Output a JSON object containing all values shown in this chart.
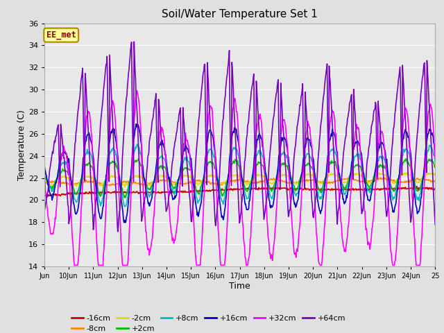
{
  "title": "Soil/Water Temperature Set 1",
  "xlabel": "Time",
  "ylabel": "Temperature (C)",
  "ylim": [
    14,
    36
  ],
  "yticks": [
    14,
    16,
    18,
    20,
    22,
    24,
    26,
    28,
    30,
    32,
    34,
    36
  ],
  "xtick_labels": [
    "Jun",
    "10Jun",
    "11Jun",
    "12Jun",
    "13Jun",
    "14Jun",
    "15Jun",
    "16Jun",
    "17Jun",
    "18Jun",
    "19Jun",
    "20Jun",
    "21Jun",
    "22Jun",
    "23Jun",
    "24Jun",
    "25"
  ],
  "background_color": "#e0e0e0",
  "plot_bg_color": "#e8e8e8",
  "grid_color": "white",
  "series": [
    {
      "label": "-16cm",
      "color": "#cc0000",
      "linewidth": 1.2
    },
    {
      "label": "-8cm",
      "color": "#ff8800",
      "linewidth": 1.2
    },
    {
      "label": "-2cm",
      "color": "#dddd00",
      "linewidth": 1.2
    },
    {
      "label": "+2cm",
      "color": "#00bb00",
      "linewidth": 1.2
    },
    {
      "label": "+8cm",
      "color": "#00bbbb",
      "linewidth": 1.2
    },
    {
      "label": "+16cm",
      "color": "#0000bb",
      "linewidth": 1.2
    },
    {
      "label": "+32cm",
      "color": "#ff00ff",
      "linewidth": 1.2
    },
    {
      "label": "+64cm",
      "color": "#7700bb",
      "linewidth": 1.2
    }
  ],
  "watermark_text": "EE_met",
  "watermark_bg": "#ffff99",
  "watermark_border": "#aa8800"
}
